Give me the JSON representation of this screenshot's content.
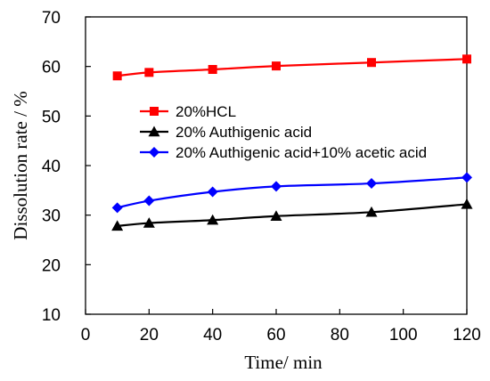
{
  "chart_data": {
    "type": "line",
    "title": "",
    "xlabel": "Time/ min",
    "ylabel": "Dissolution rate / %",
    "xlim": [
      0,
      120
    ],
    "ylim": [
      10,
      70
    ],
    "xticks": [
      0,
      20,
      40,
      60,
      80,
      100,
      120
    ],
    "yticks": [
      10,
      20,
      30,
      40,
      50,
      60,
      70
    ],
    "grid": false,
    "legend_position": "center-left",
    "series": [
      {
        "name": "20%HCL",
        "color": "#ff0000",
        "marker": "square",
        "x": [
          10,
          20,
          40,
          60,
          90,
          120
        ],
        "y": [
          58.1,
          58.8,
          59.4,
          60.1,
          60.8,
          61.5
        ]
      },
      {
        "name": "20% Authigenic acid",
        "color": "#000000",
        "marker": "triangle",
        "x": [
          10,
          20,
          40,
          60,
          90,
          120
        ],
        "y": [
          27.8,
          28.4,
          29.0,
          29.8,
          30.6,
          32.2
        ]
      },
      {
        "name": "20% Authigenic acid+10% acetic acid",
        "color": "#0000ff",
        "marker": "diamond",
        "x": [
          10,
          20,
          40,
          60,
          90,
          120
        ],
        "y": [
          31.5,
          32.9,
          34.7,
          35.8,
          36.4,
          37.6
        ]
      }
    ]
  }
}
